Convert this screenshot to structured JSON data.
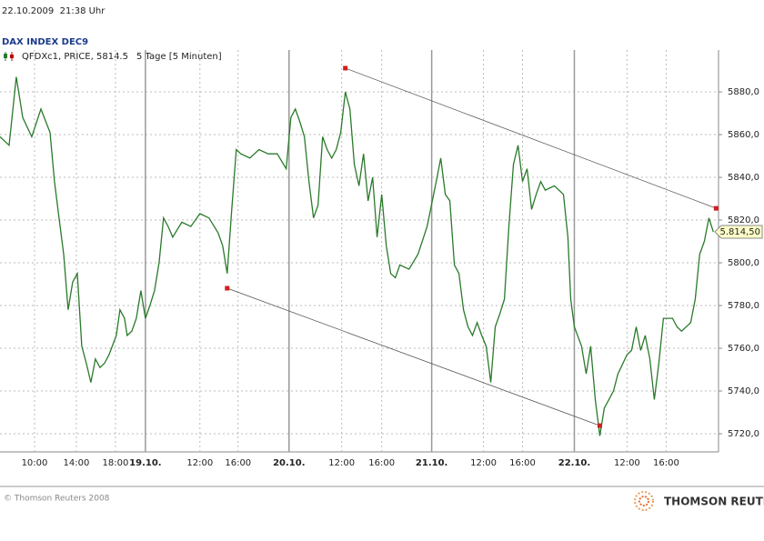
{
  "header": {
    "timestamp": "22.10.2009  21:38 Uhr",
    "instrument": "DAX INDEX DEC9"
  },
  "footer": {
    "copyright": "© Thomson Reuters 2008",
    "logo": "THOMSON REUTERS"
  },
  "chart_data": {
    "type": "line",
    "subtitle": "5 Tage [5 Minuten]",
    "x": [
      0,
      0.95,
      1.71,
      2.38,
      3.33,
      4.29,
      5.24,
      5.71,
      6.19,
      6.67,
      7.14,
      7.62,
      8.1,
      8.57,
      9.05,
      9.52,
      10,
      10.48,
      10.95,
      11.43,
      12.19,
      12.57,
      13.05,
      13.33,
      13.81,
      14.29,
      14.76,
      15.24,
      15.71,
      16.19,
      16.67,
      17.14,
      17.62,
      18.1,
      19.05,
      20,
      20.95,
      21.9,
      22.86,
      23.33,
      23.81,
      24.29,
      24.76,
      25.24,
      26.19,
      27.14,
      28.1,
      29.05,
      30,
      30.48,
      30.95,
      31.43,
      31.9,
      32.38,
      32.86,
      33.33,
      33.81,
      34.29,
      34.76,
      35.24,
      35.71,
      36.19,
      36.67,
      37.14,
      37.62,
      38.1,
      38.57,
      39.05,
      39.52,
      40,
      40.48,
      40.95,
      41.43,
      41.9,
      42.86,
      43.81,
      44.76,
      45.71,
      46.19,
      46.67,
      47.14,
      47.62,
      48.1,
      48.57,
      49.05,
      49.52,
      50,
      50.48,
      50.95,
      51.43,
      51.9,
      52.38,
      52.86,
      53.33,
      53.81,
      54.29,
      54.76,
      55.24,
      55.71,
      56.19,
      56.67,
      57.14,
      58.1,
      59.05,
      59.52,
      59.81,
      60.19,
      60.95,
      61.43,
      61.9,
      62.38,
      62.86,
      63.33,
      63.81,
      64.29,
      64.76,
      65.71,
      66.19,
      66.67,
      67.14,
      67.62,
      68.1,
      68.57,
      69.05,
      69.52,
      70.48,
      70.95,
      71.43,
      72.38,
      72.86,
      73.33,
      73.81,
      74.29,
      74.76
    ],
    "series": [
      {
        "name": "QFDXc1, PRICE, 5814.5",
        "color": "#2a7a2a",
        "values": [
          5859,
          5855,
          5887,
          5868,
          5859,
          5872,
          5861,
          5838,
          5821,
          5804,
          5778,
          5791,
          5795,
          5761,
          5753,
          5744,
          5755,
          5751,
          5753,
          5757,
          5766,
          5778,
          5774,
          5766,
          5768,
          5774,
          5787,
          5774,
          5780,
          5787,
          5800,
          5821,
          5817,
          5812,
          5819,
          5817,
          5823,
          5821,
          5814,
          5808,
          5795,
          5825,
          5853,
          5851,
          5849,
          5853,
          5851,
          5851,
          5844,
          5868,
          5872,
          5866,
          5859,
          5838,
          5821,
          5827,
          5859,
          5853,
          5849,
          5853,
          5861,
          5880,
          5872,
          5846,
          5836,
          5851,
          5829,
          5840,
          5812,
          5832,
          5808,
          5795,
          5793,
          5799,
          5797,
          5804,
          5817,
          5838,
          5849,
          5832,
          5829,
          5799,
          5795,
          5778,
          5770,
          5766,
          5772,
          5766,
          5761,
          5744,
          5770,
          5776,
          5783,
          5817,
          5846,
          5855,
          5838,
          5844,
          5825,
          5832,
          5838,
          5834,
          5836,
          5832,
          5812,
          5783,
          5770,
          5761,
          5748,
          5761,
          5736,
          5719,
          5732,
          5736,
          5740,
          5748,
          5757,
          5759,
          5770,
          5759,
          5766,
          5755,
          5736,
          5753,
          5774,
          5774,
          5770,
          5768,
          5772,
          5783,
          5804,
          5810,
          5821,
          5814.5
        ]
      }
    ],
    "trendlines": [
      {
        "color": "#555555",
        "x": [
          36.19,
          75.05
        ],
        "values": [
          5891.1,
          5825.5
        ]
      },
      {
        "color": "#555555",
        "x": [
          23.81,
          62.86
        ],
        "values": [
          5788.1,
          5723.8
        ]
      }
    ],
    "last_label": {
      "value": 5814.5,
      "label": "5.814,50"
    },
    "xlim": [
      0,
      75.3
    ],
    "xticks": [
      {
        "value": 3.62,
        "label": "10:00"
      },
      {
        "value": 8,
        "label": "14:00"
      },
      {
        "value": 12.1,
        "label": "18:00"
      },
      {
        "value": 15.24,
        "label": "19.10."
      },
      {
        "value": 20.95,
        "label": "12:00"
      },
      {
        "value": 24.95,
        "label": "16:00"
      },
      {
        "value": 30.29,
        "label": "20.10."
      },
      {
        "value": 35.81,
        "label": "12:00"
      },
      {
        "value": 40,
        "label": "16:00"
      },
      {
        "value": 45.24,
        "label": "21.10."
      },
      {
        "value": 50.67,
        "label": "12:00"
      },
      {
        "value": 54.76,
        "label": "16:00"
      },
      {
        "value": 60.19,
        "label": "22.10."
      },
      {
        "value": 65.71,
        "label": "12:00"
      },
      {
        "value": 69.81,
        "label": "16:00"
      }
    ],
    "ylim": [
      5711.5,
      5899.6
    ],
    "yticks": [
      {
        "value": 5720,
        "label": "5720,0"
      },
      {
        "value": 5740,
        "label": "5740,0"
      },
      {
        "value": 5760,
        "label": "5760,0"
      },
      {
        "value": 5780,
        "label": "5780,0"
      },
      {
        "value": 5800,
        "label": "5800,0"
      },
      {
        "value": 5820,
        "label": "5820,0"
      },
      {
        "value": 5840,
        "label": "5840,0"
      },
      {
        "value": 5860,
        "label": "5860,0"
      },
      {
        "value": 5880,
        "label": "5880,0"
      }
    ],
    "grid": true
  }
}
